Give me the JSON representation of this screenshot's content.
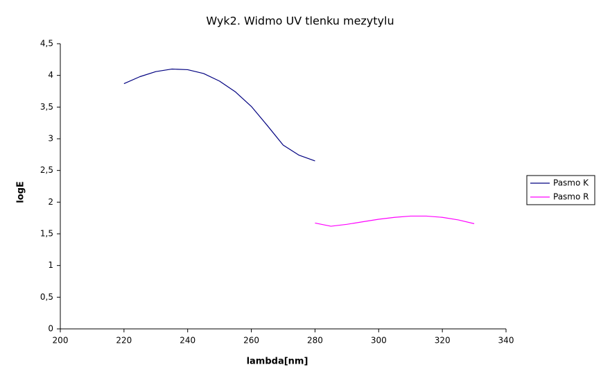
{
  "chart_data": {
    "type": "line",
    "title": "Wyk2. Widmo UV tlenku mezytylu",
    "x_label": "lambda[nm]",
    "y_label": "logE",
    "series": [
      {
        "name": "Pasmo K",
        "color": "#000080",
        "x": [
          220,
          225,
          230,
          235,
          240,
          245,
          250,
          255,
          260,
          265,
          270,
          275,
          280
        ],
        "values": [
          3.87,
          3.98,
          4.06,
          4.1,
          4.09,
          4.03,
          3.91,
          3.74,
          3.51,
          3.21,
          2.9,
          2.74,
          2.65
        ]
      },
      {
        "name": "Pasmo R",
        "color": "#ff00ff",
        "x": [
          280,
          285,
          290,
          295,
          300,
          305,
          310,
          315,
          320,
          325,
          330
        ],
        "values": [
          1.67,
          1.62,
          1.65,
          1.69,
          1.73,
          1.76,
          1.78,
          1.78,
          1.76,
          1.72,
          1.66
        ]
      }
    ],
    "xlim": [
      200,
      340
    ],
    "xticks": [
      200,
      220,
      240,
      260,
      280,
      300,
      320,
      340
    ],
    "ylim": [
      0,
      4.5
    ],
    "yticks": [
      0,
      {
        "value": 0.5,
        "label": "0,5"
      },
      1,
      {
        "value": 1.5,
        "label": "1,5"
      },
      2,
      {
        "value": 2.5,
        "label": "2,5"
      },
      3,
      {
        "value": 3.5,
        "label": "3,5"
      },
      4,
      {
        "value": 4.5,
        "label": "4,5"
      }
    ],
    "grid": false,
    "legend": "right"
  }
}
